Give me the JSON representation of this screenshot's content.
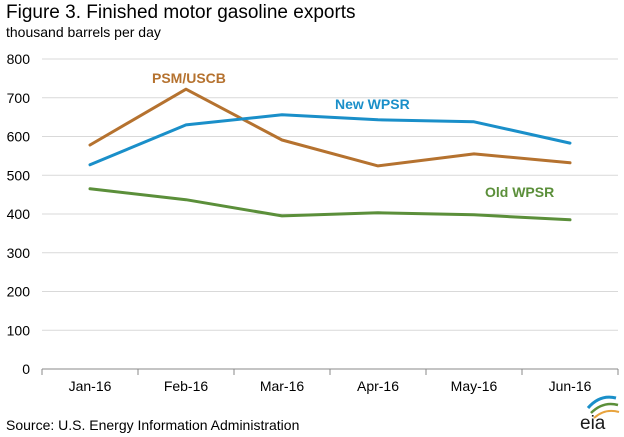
{
  "header": {
    "title": "Figure 3. Finished motor gasoline exports",
    "subtitle": "thousand barrels per day"
  },
  "footer": {
    "source": "Source: U.S. Energy Information Administration",
    "logo_text": "eia"
  },
  "colors": {
    "psm_uscb": "#b5722f",
    "new_wpsr": "#1a8fc9",
    "old_wpsr": "#5b8f3a",
    "gridline": "#d9d9d9",
    "axis": "#888888"
  },
  "chart_data": {
    "type": "line",
    "categories": [
      "Jan-16",
      "Feb-16",
      "Mar-16",
      "Apr-16",
      "May-16",
      "Jun-16"
    ],
    "ylim": [
      0,
      800
    ],
    "yticks": [
      0,
      100,
      200,
      300,
      400,
      500,
      600,
      700,
      800
    ],
    "grid": true,
    "legend": "inline-labels",
    "xlabel": "",
    "ylabel": "thousand barrels per day",
    "series": [
      {
        "name": "PSM/USCB",
        "color": "#b5722f",
        "values": [
          578,
          722,
          591,
          524,
          555,
          532
        ]
      },
      {
        "name": "New WPSR",
        "color": "#1a8fc9",
        "values": [
          527,
          630,
          656,
          643,
          638,
          583
        ]
      },
      {
        "name": "Old WPSR",
        "color": "#5b8f3a",
        "values": [
          465,
          437,
          395,
          403,
          398,
          385
        ]
      }
    ]
  }
}
